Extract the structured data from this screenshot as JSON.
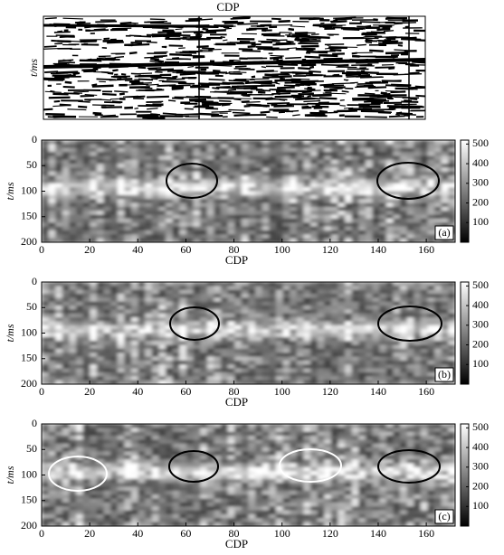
{
  "chart_data": [
    {
      "type": "image",
      "title": "CDP",
      "ylabel": "t/ms"
    },
    {
      "type": "heatmap",
      "xlabel": "CDP",
      "ylabel": "t/ms",
      "panel_label": "(a)",
      "xlim": [
        0,
        172
      ],
      "xticks": [
        0,
        20,
        40,
        60,
        80,
        100,
        120,
        140,
        160
      ],
      "ylim": [
        0,
        200
      ],
      "yticks": [
        0,
        50,
        100,
        150,
        200
      ],
      "clim": [
        0,
        520
      ],
      "cticks": [
        100,
        200,
        300,
        400,
        500
      ]
    },
    {
      "type": "heatmap",
      "xlabel": "CDP",
      "ylabel": "t/ms",
      "panel_label": "(b)",
      "xlim": [
        0,
        172
      ],
      "xticks": [
        0,
        20,
        40,
        60,
        80,
        100,
        120,
        140,
        160
      ],
      "ylim": [
        0,
        200
      ],
      "yticks": [
        0,
        50,
        100,
        150,
        200
      ],
      "clim": [
        0,
        520
      ],
      "cticks": [
        100,
        200,
        300,
        400,
        500
      ]
    },
    {
      "type": "heatmap",
      "xlabel": "CDP",
      "ylabel": "t/ms",
      "panel_label": "(c)",
      "xlim": [
        0,
        172
      ],
      "xticks": [
        0,
        20,
        40,
        60,
        80,
        100,
        120,
        140,
        160
      ],
      "ylim": [
        0,
        200
      ],
      "yticks": [
        0,
        50,
        100,
        150,
        200
      ],
      "clim": [
        0,
        520
      ],
      "cticks": [
        100,
        200,
        300,
        400,
        500
      ]
    }
  ]
}
